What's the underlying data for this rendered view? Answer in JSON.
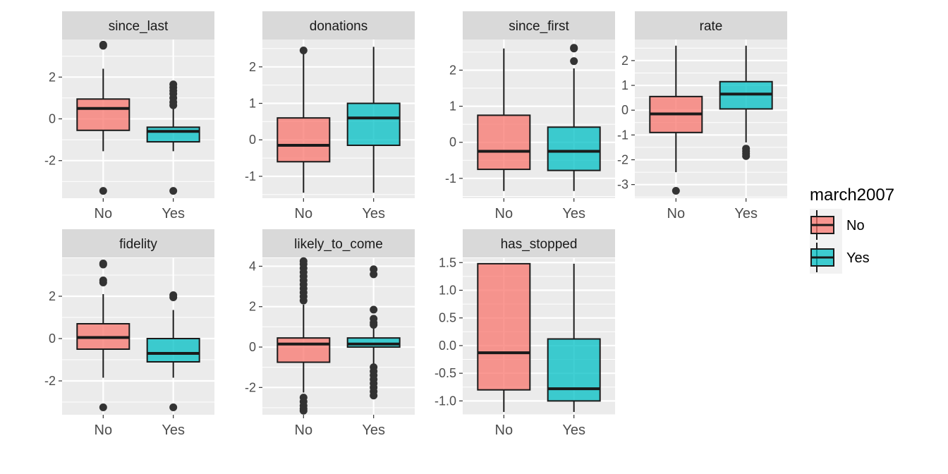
{
  "chart_data": {
    "type": "boxplot",
    "layout": "facet_wrap",
    "colors": {
      "No": "#F8766D",
      "Yes": "#00BFC4",
      "panel_bg": "#EBEBEB",
      "strip_bg": "#D9D9D9",
      "line": "#1a1a1a"
    },
    "legend": {
      "title": "march2007",
      "position": "right",
      "entries": [
        {
          "label": "No",
          "color": "#F8766D"
        },
        {
          "label": "Yes",
          "color": "#00BFC4"
        }
      ]
    },
    "categories": [
      "No",
      "Yes"
    ],
    "facets": [
      {
        "title": "since_last",
        "ylim": [
          -3.8,
          3.8
        ],
        "yticks": [
          -2,
          0,
          2
        ],
        "ytick_labels": [
          "-2",
          "0",
          "2"
        ],
        "boxes": [
          {
            "category": "No",
            "low": -1.55,
            "q1": -0.55,
            "median": 0.5,
            "q3": 0.95,
            "high": 2.4,
            "outliers": [
              3.5,
              3.55,
              -3.45
            ]
          },
          {
            "category": "Yes",
            "low": -1.55,
            "q1": -1.1,
            "median": -0.6,
            "q3": -0.4,
            "high": 0.55,
            "outliers": [
              0.65,
              0.8,
              1.0,
              1.2,
              1.35,
              1.5,
              1.65,
              -3.45
            ]
          }
        ]
      },
      {
        "title": "donations",
        "ylim": [
          -1.6,
          2.75
        ],
        "yticks": [
          -1,
          0,
          1,
          2
        ],
        "ytick_labels": [
          "-1",
          "0",
          "1",
          "2"
        ],
        "boxes": [
          {
            "category": "No",
            "low": -1.45,
            "q1": -0.6,
            "median": -0.15,
            "q3": 0.6,
            "high": 2.45,
            "outliers": [
              2.45
            ]
          },
          {
            "category": "Yes",
            "low": -1.45,
            "q1": -0.15,
            "median": 0.6,
            "q3": 1.0,
            "high": 2.55,
            "outliers": []
          }
        ]
      },
      {
        "title": "since_first",
        "ylim": [
          -1.55,
          2.85
        ],
        "yticks": [
          -1,
          0,
          1,
          2
        ],
        "ytick_labels": [
          "-1",
          "0",
          "1",
          "2"
        ],
        "boxes": [
          {
            "category": "No",
            "low": -1.35,
            "q1": -0.75,
            "median": -0.25,
            "q3": 0.75,
            "high": 2.6,
            "outliers": []
          },
          {
            "category": "Yes",
            "low": -1.35,
            "q1": -0.78,
            "median": -0.25,
            "q3": 0.42,
            "high": 2.05,
            "outliers": [
              2.25,
              2.6,
              2.62
            ]
          }
        ]
      },
      {
        "title": "rate",
        "ylim": [
          -3.55,
          2.85
        ],
        "yticks": [
          -3,
          -2,
          -1,
          0,
          1,
          2
        ],
        "ytick_labels": [
          "-3",
          "-2",
          "-1",
          "0",
          "1",
          "2"
        ],
        "boxes": [
          {
            "category": "No",
            "low": -2.5,
            "q1": -0.9,
            "median": -0.15,
            "q3": 0.55,
            "high": 2.6,
            "outliers": [
              -3.25
            ]
          },
          {
            "category": "Yes",
            "low": -1.3,
            "q1": 0.05,
            "median": 0.65,
            "q3": 1.15,
            "high": 2.6,
            "outliers": [
              -1.55,
              -1.65,
              -1.75,
              -1.85
            ]
          }
        ]
      },
      {
        "title": "fidelity",
        "ylim": [
          -3.6,
          3.8
        ],
        "yticks": [
          -2,
          0,
          2
        ],
        "ytick_labels": [
          "-2",
          "0",
          "2"
        ],
        "boxes": [
          {
            "category": "No",
            "low": -1.85,
            "q1": -0.5,
            "median": 0.05,
            "q3": 0.7,
            "high": 2.1,
            "outliers": [
              2.65,
              2.75,
              3.5,
              3.55,
              -3.25
            ]
          },
          {
            "category": "Yes",
            "low": -1.85,
            "q1": -1.1,
            "median": -0.7,
            "q3": 0.0,
            "high": 1.35,
            "outliers": [
              1.95,
              2.05,
              -3.25
            ]
          }
        ]
      },
      {
        "title": "likely_to_come",
        "ylim": [
          -3.35,
          4.4
        ],
        "yticks": [
          -2,
          0,
          2,
          4
        ],
        "ytick_labels": [
          "-2",
          "0",
          "2",
          "4"
        ],
        "boxes": [
          {
            "category": "No",
            "low": -2.25,
            "q1": -0.75,
            "median": 0.15,
            "q3": 0.45,
            "high": 2.1,
            "outliers": [
              2.3,
              2.5,
              2.7,
              2.9,
              3.1,
              3.3,
              3.5,
              3.7,
              3.9,
              4.1,
              4.25,
              -2.5,
              -2.7,
              -2.9,
              -3.05,
              -3.15
            ]
          },
          {
            "category": "Yes",
            "low": -0.85,
            "q1": 0.0,
            "median": 0.15,
            "q3": 0.45,
            "high": 0.95,
            "outliers": [
              1.1,
              1.2,
              1.4,
              1.85,
              3.6,
              3.85,
              -1.0,
              -1.2,
              -1.4,
              -1.6,
              -1.8,
              -2.0,
              -2.2,
              -2.4
            ]
          }
        ]
      },
      {
        "title": "has_stopped",
        "ylim": [
          -1.25,
          1.58
        ],
        "yticks": [
          -1.0,
          -0.5,
          0.0,
          0.5,
          1.0,
          1.5
        ],
        "ytick_labels": [
          "-1.0",
          "-0.5",
          "0.0",
          "0.5",
          "1.0",
          "1.5"
        ],
        "boxes": [
          {
            "category": "No",
            "low": -1.2,
            "q1": -0.8,
            "median": -0.13,
            "q3": 1.48,
            "high": 1.48,
            "outliers": []
          },
          {
            "category": "Yes",
            "low": -1.2,
            "q1": -1.0,
            "median": -0.78,
            "q3": 0.12,
            "high": 1.48,
            "outliers": []
          }
        ]
      }
    ]
  }
}
